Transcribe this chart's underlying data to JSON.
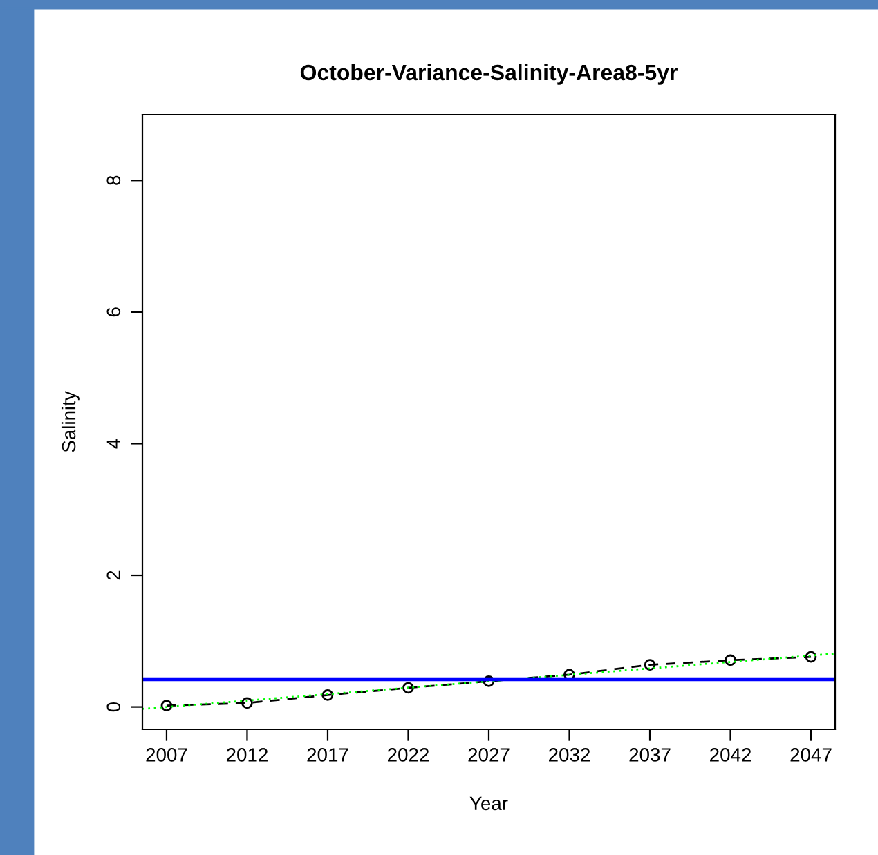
{
  "chart_data": {
    "type": "line",
    "title": "October-Variance-Salinity-Area8-5yr",
    "xlabel": "Year",
    "ylabel": "Salinity",
    "x": [
      2007,
      2012,
      2017,
      2022,
      2027,
      2032,
      2037,
      2042,
      2047
    ],
    "series": [
      {
        "color": "#000000",
        "values": [
          0.02,
          0.06,
          0.18,
          0.29,
          0.39,
          0.49,
          0.64,
          0.71,
          0.76
        ],
        "marker": "circle",
        "line_style": "dashed"
      },
      {
        "type": "line",
        "color": "#00ff00",
        "x": [
          2005.5,
          2048.5
        ],
        "values": [
          -0.03,
          0.81
        ],
        "marker": "none",
        "line_style": "dotted"
      }
    ],
    "ref_lines": [
      {
        "axis": "y",
        "value": 0.42,
        "color": "#0000ff",
        "line_style": "solid"
      }
    ],
    "xlim": [
      2005.5,
      2048.5
    ],
    "xticks": [
      2007,
      2012,
      2017,
      2022,
      2027,
      2032,
      2037,
      2042,
      2047
    ],
    "ylim": [
      -0.34,
      9.0
    ],
    "yticks": [
      0,
      2,
      4,
      6,
      8
    ],
    "grid": false,
    "legend": false
  }
}
